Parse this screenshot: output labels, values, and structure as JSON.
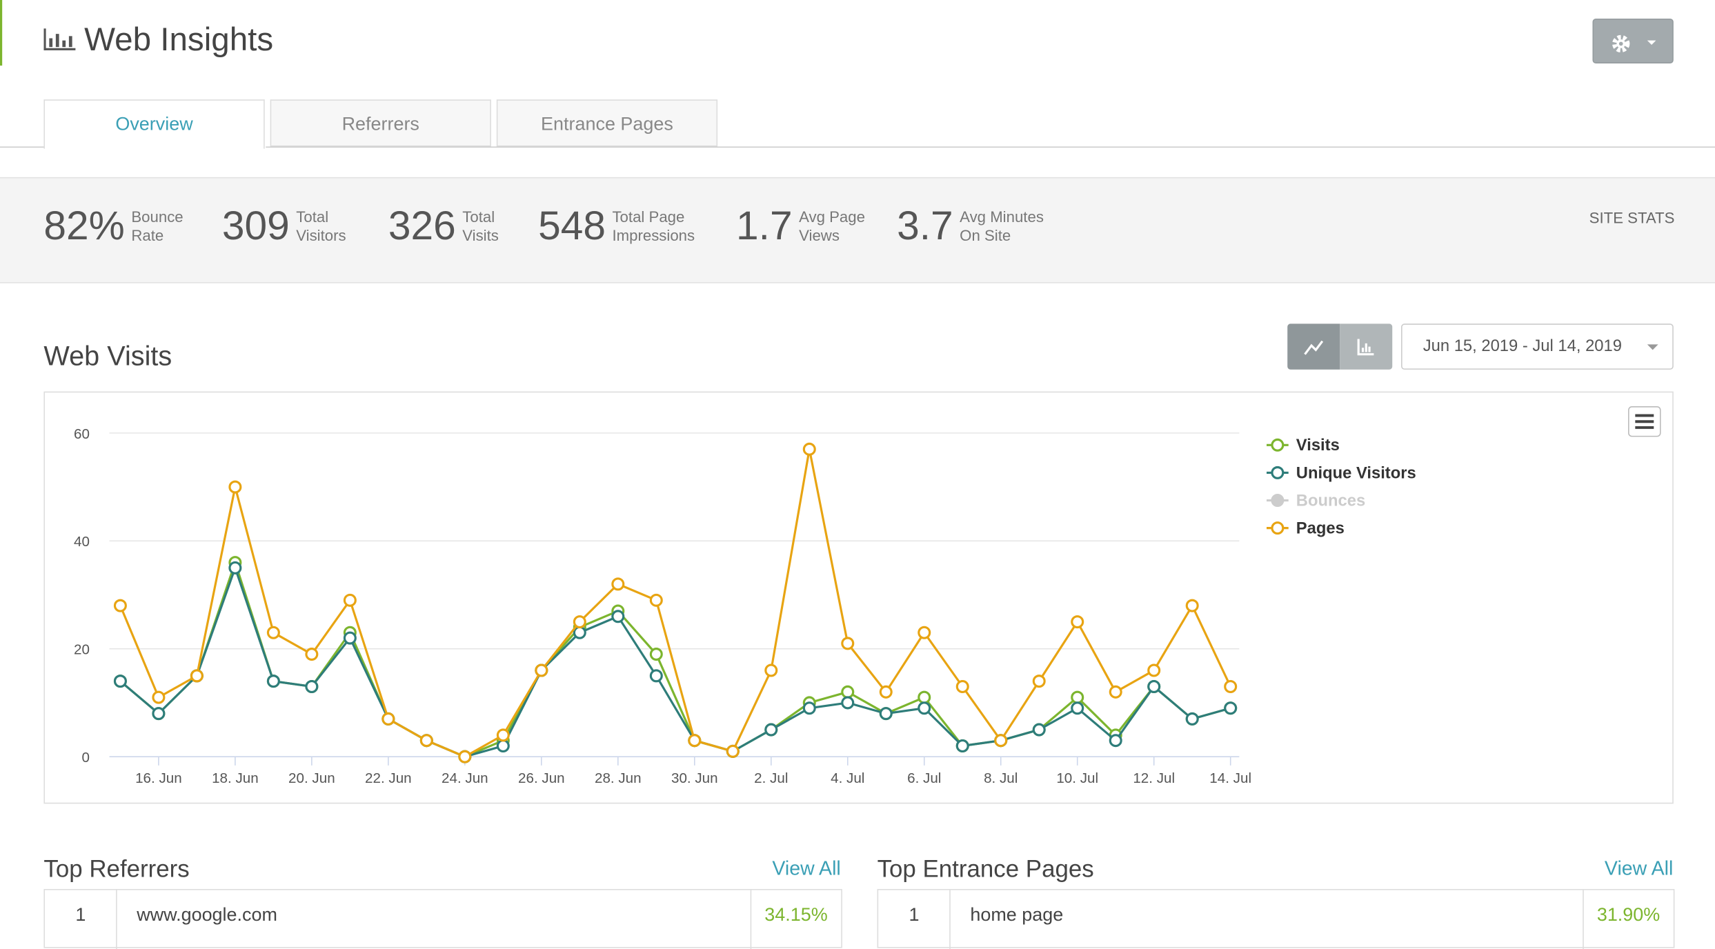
{
  "header": {
    "title": "Web Insights"
  },
  "tabs": [
    "Overview",
    "Referrers",
    "Entrance Pages"
  ],
  "stats": [
    {
      "value": "82%",
      "label": "Bounce Rate"
    },
    {
      "value": "309",
      "label": "Total Visitors"
    },
    {
      "value": "326",
      "label": "Total Visits"
    },
    {
      "value": "548",
      "label": "Total Page Impressions"
    },
    {
      "value": "1.7",
      "label": "Avg Page Views"
    },
    {
      "value": "3.7",
      "label": "Avg Minutes On Site"
    }
  ],
  "site_stats_label": "SITE STATS",
  "section_title": "Web Visits",
  "date_range": "Jun 15, 2019 - Jul 14, 2019",
  "chart_data": {
    "type": "line",
    "categories": [
      null,
      "16. Jun",
      null,
      "18. Jun",
      null,
      "20. Jun",
      null,
      "22. Jun",
      null,
      "24. Jun",
      null,
      "26. Jun",
      null,
      "28. Jun",
      null,
      "30. Jun",
      null,
      "2. Jul",
      null,
      "4. Jul",
      null,
      "6. Jul",
      null,
      "8. Jul",
      null,
      "10. Jul",
      null,
      "12. Jul",
      null,
      "14. Jul"
    ],
    "ylim": [
      0,
      60
    ],
    "yticks": [
      0,
      20,
      40,
      60
    ],
    "grid": true,
    "series": [
      {
        "name": "Visits",
        "color": "#7cb52e",
        "values": [
          14,
          8,
          15,
          36,
          14,
          13,
          23,
          7,
          3,
          0,
          3,
          16,
          24,
          27,
          19,
          3,
          1,
          5,
          10,
          12,
          8,
          11,
          2,
          3,
          5,
          11,
          4,
          13,
          7,
          9
        ]
      },
      {
        "name": "Unique Visitors",
        "color": "#2e7d7a",
        "values": [
          14,
          8,
          15,
          35,
          14,
          13,
          22,
          7,
          3,
          0,
          2,
          16,
          23,
          26,
          15,
          3,
          1,
          5,
          9,
          10,
          8,
          9,
          2,
          3,
          5,
          9,
          3,
          13,
          7,
          9
        ]
      },
      {
        "name": "Bounces",
        "color": "#cccccc",
        "hidden": true,
        "values": [
          null,
          null,
          null,
          null,
          null,
          null,
          null,
          null,
          null,
          null,
          null,
          null,
          null,
          null,
          null,
          null,
          null,
          null,
          null,
          null,
          null,
          null,
          null,
          null,
          null,
          null,
          null,
          null,
          null,
          null
        ]
      },
      {
        "name": "Pages",
        "color": "#e8a412",
        "values": [
          28,
          11,
          15,
          50,
          23,
          19,
          29,
          7,
          3,
          0,
          4,
          16,
          25,
          32,
          29,
          3,
          1,
          16,
          57,
          21,
          12,
          23,
          13,
          3,
          14,
          25,
          12,
          16,
          28,
          13
        ]
      }
    ]
  },
  "referrers": {
    "title": "Top Referrers",
    "view_all": "View All",
    "rows": [
      [
        "1",
        "www.google.com",
        "34.15%"
      ]
    ]
  },
  "entrance_pages": {
    "title": "Top Entrance Pages",
    "view_all": "View All",
    "rows": [
      [
        "1",
        "home page",
        "31.90%"
      ]
    ]
  }
}
